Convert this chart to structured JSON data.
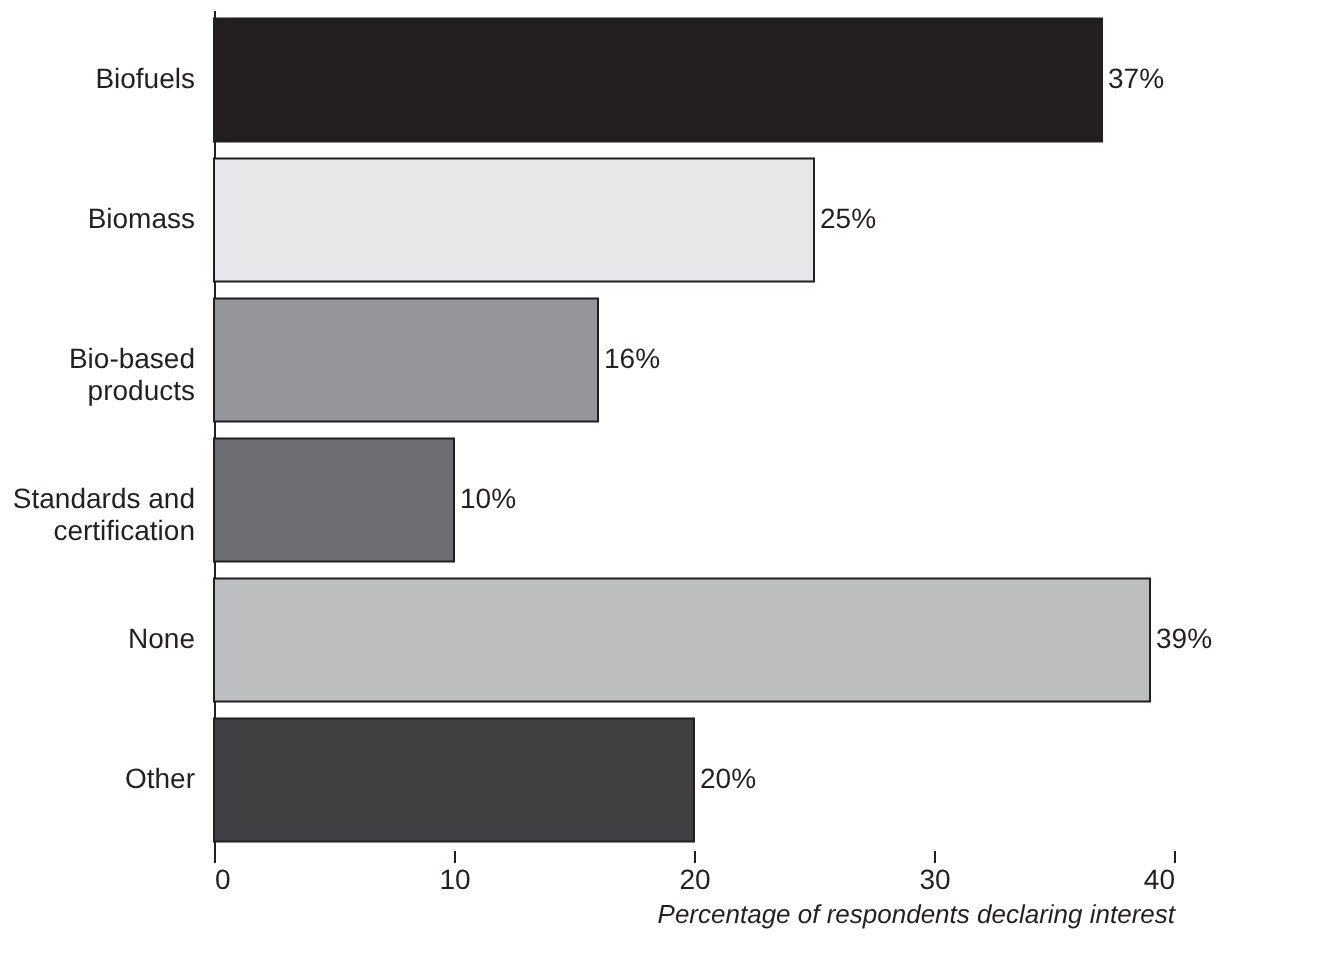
{
  "chart_data": {
    "type": "bar",
    "orientation": "horizontal",
    "categories": [
      "Biofuels",
      "Biomass",
      "Bio-based\nproducts",
      "Standards and\ncertification",
      "None",
      "Other"
    ],
    "values": [
      37,
      25,
      16,
      10,
      39,
      20
    ],
    "colors": [
      "#231f20",
      "#e6e7e8",
      "#939598",
      "#6d6e71",
      "#bcbec0",
      "#414042"
    ],
    "value_labels": [
      "37%",
      "25%",
      "16%",
      "10%",
      "39%",
      "20%"
    ],
    "xlabel": "Percentage of respondents declaring interest",
    "xlim": [
      0,
      40
    ],
    "xticks": [
      0,
      10,
      20,
      30,
      40
    ],
    "grid": false
  }
}
